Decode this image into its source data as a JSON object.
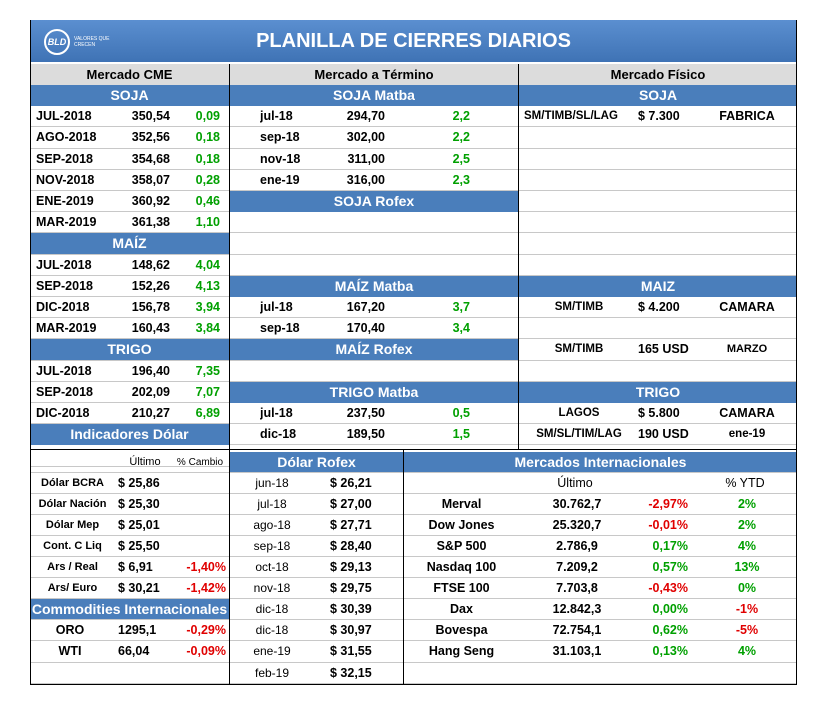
{
  "title": "PLANILLA DE CIERRES DIARIOS",
  "logo": {
    "mark": "BLD",
    "tagline": "VALORES QUE CRECEN"
  },
  "columns": {
    "cme": "Mercado CME",
    "termino": "Mercado a Término",
    "fisico": "Mercado Físico"
  },
  "cme": {
    "soja_title": "SOJA",
    "soja": [
      {
        "m": "JUL-2018",
        "v": "350,54",
        "c": "0,09"
      },
      {
        "m": "AGO-2018",
        "v": "352,56",
        "c": "0,18"
      },
      {
        "m": "SEP-2018",
        "v": "354,68",
        "c": "0,18"
      },
      {
        "m": "NOV-2018",
        "v": "358,07",
        "c": "0,28"
      },
      {
        "m": "ENE-2019",
        "v": "360,92",
        "c": "0,46"
      },
      {
        "m": "MAR-2019",
        "v": "361,38",
        "c": "1,10"
      }
    ],
    "maiz_title": "MAÍZ",
    "maiz": [
      {
        "m": "JUL-2018",
        "v": "148,62",
        "c": "4,04"
      },
      {
        "m": "SEP-2018",
        "v": "152,26",
        "c": "4,13"
      },
      {
        "m": "DIC-2018",
        "v": "156,78",
        "c": "3,94"
      },
      {
        "m": "MAR-2019",
        "v": "160,43",
        "c": "3,84"
      }
    ],
    "trigo_title": "TRIGO",
    "trigo": [
      {
        "m": "JUL-2018",
        "v": "196,40",
        "c": "7,35"
      },
      {
        "m": "SEP-2018",
        "v": "202,09",
        "c": "7,07"
      },
      {
        "m": "DIC-2018",
        "v": "210,27",
        "c": "6,89"
      }
    ]
  },
  "termino": {
    "soja_matba_title": "SOJA Matba",
    "soja_matba": [
      {
        "m": "jul-18",
        "v": "294,70",
        "c": "2,2"
      },
      {
        "m": "sep-18",
        "v": "302,00",
        "c": "2,2"
      },
      {
        "m": "nov-18",
        "v": "311,00",
        "c": "2,5"
      },
      {
        "m": "ene-19",
        "v": "316,00",
        "c": "2,3"
      }
    ],
    "soja_rofex_title": "SOJA Rofex",
    "maiz_matba_title": "MAÍZ Matba",
    "maiz_matba": [
      {
        "m": "jul-18",
        "v": "167,20",
        "c": "3,7"
      },
      {
        "m": "sep-18",
        "v": "170,40",
        "c": "3,4"
      }
    ],
    "maiz_rofex_title": "MAÍZ Rofex",
    "trigo_matba_title": "TRIGO Matba",
    "trigo_matba": [
      {
        "m": "jul-18",
        "v": "237,50",
        "c": "0,5"
      },
      {
        "m": "dic-18",
        "v": "189,50",
        "c": "1,5"
      }
    ]
  },
  "fisico": {
    "soja_title": "SOJA",
    "soja": [
      {
        "a": "SM/TIMB/SL/LAG",
        "b": "$ 7.300",
        "c": "FABRICA"
      }
    ],
    "maiz_title": "MAIZ",
    "maiz": [
      {
        "a": "SM/TIMB",
        "b": "$ 4.200",
        "c": "CAMARA"
      },
      {
        "a": "",
        "b": "",
        "c": ""
      },
      {
        "a": "SM/TIMB",
        "b": "165 USD",
        "c": "MARZO"
      }
    ],
    "trigo_title": "TRIGO",
    "trigo": [
      {
        "a": "LAGOS",
        "b": "$ 5.800",
        "c": "CAMARA"
      },
      {
        "a": "SM/SL/TIM/LAG",
        "b": "190 USD",
        "c": "ene-19"
      }
    ]
  },
  "dolar": {
    "title": "Indicadores Dólar",
    "col_ultimo": "Último",
    "col_cambio": "% Cambio",
    "rows": [
      {
        "n": "Dólar BCRA",
        "v": "$ 25,86",
        "c": ""
      },
      {
        "n": "Dólar Nación",
        "v": "$ 25,30",
        "c": ""
      },
      {
        "n": "Dólar Mep",
        "v": "$ 25,01",
        "c": ""
      },
      {
        "n": "Cont. C Liq",
        "v": "$ 25,50",
        "c": ""
      },
      {
        "n": "Ars / Real",
        "v": "$ 6,91",
        "c": "-1,40%"
      },
      {
        "n": "Ars/ Euro",
        "v": "$ 30,21",
        "c": "-1,42%"
      }
    ]
  },
  "commodities": {
    "title": "Commodities Internacionales",
    "rows": [
      {
        "n": "ORO",
        "v": "1295,1",
        "c": "-0,29%"
      },
      {
        "n": "WTI",
        "v": "66,04",
        "c": "-0,09%"
      }
    ]
  },
  "rofex": {
    "title": "Dólar Rofex",
    "rows": [
      {
        "m": "jun-18",
        "v": "$ 26,21"
      },
      {
        "m": "jul-18",
        "v": "$ 27,00"
      },
      {
        "m": "ago-18",
        "v": "$ 27,71"
      },
      {
        "m": "sep-18",
        "v": "$ 28,40"
      },
      {
        "m": "oct-18",
        "v": "$ 29,13"
      },
      {
        "m": "nov-18",
        "v": "$ 29,75"
      },
      {
        "m": "dic-18",
        "v": "$ 30,39"
      },
      {
        "m": "dic-18",
        "v": "$ 30,97"
      },
      {
        "m": "ene-19",
        "v": "$ 31,55"
      },
      {
        "m": "feb-19",
        "v": "$ 32,15"
      }
    ]
  },
  "intl": {
    "title": "Mercados Internacionales",
    "col_ultimo": "Último",
    "col_ytd": "% YTD",
    "rows": [
      {
        "n": "Merval",
        "v": "30.762,7",
        "c": "-2,97%",
        "y": "2%"
      },
      {
        "n": "Dow Jones",
        "v": "25.320,7",
        "c": "-0,01%",
        "y": "2%"
      },
      {
        "n": "S&P 500",
        "v": "2.786,9",
        "c": "0,17%",
        "y": "4%"
      },
      {
        "n": "Nasdaq 100",
        "v": "7.209,2",
        "c": "0,57%",
        "y": "13%"
      },
      {
        "n": "FTSE 100",
        "v": "7.703,8",
        "c": "-0,43%",
        "y": "0%"
      },
      {
        "n": "Dax",
        "v": "12.842,3",
        "c": "0,00%",
        "y": "-1%"
      },
      {
        "n": "Bovespa",
        "v": "72.754,1",
        "c": "0,62%",
        "y": "-5%"
      },
      {
        "n": "Hang Seng",
        "v": "31.103,1",
        "c": "0,13%",
        "y": "4%"
      }
    ]
  }
}
